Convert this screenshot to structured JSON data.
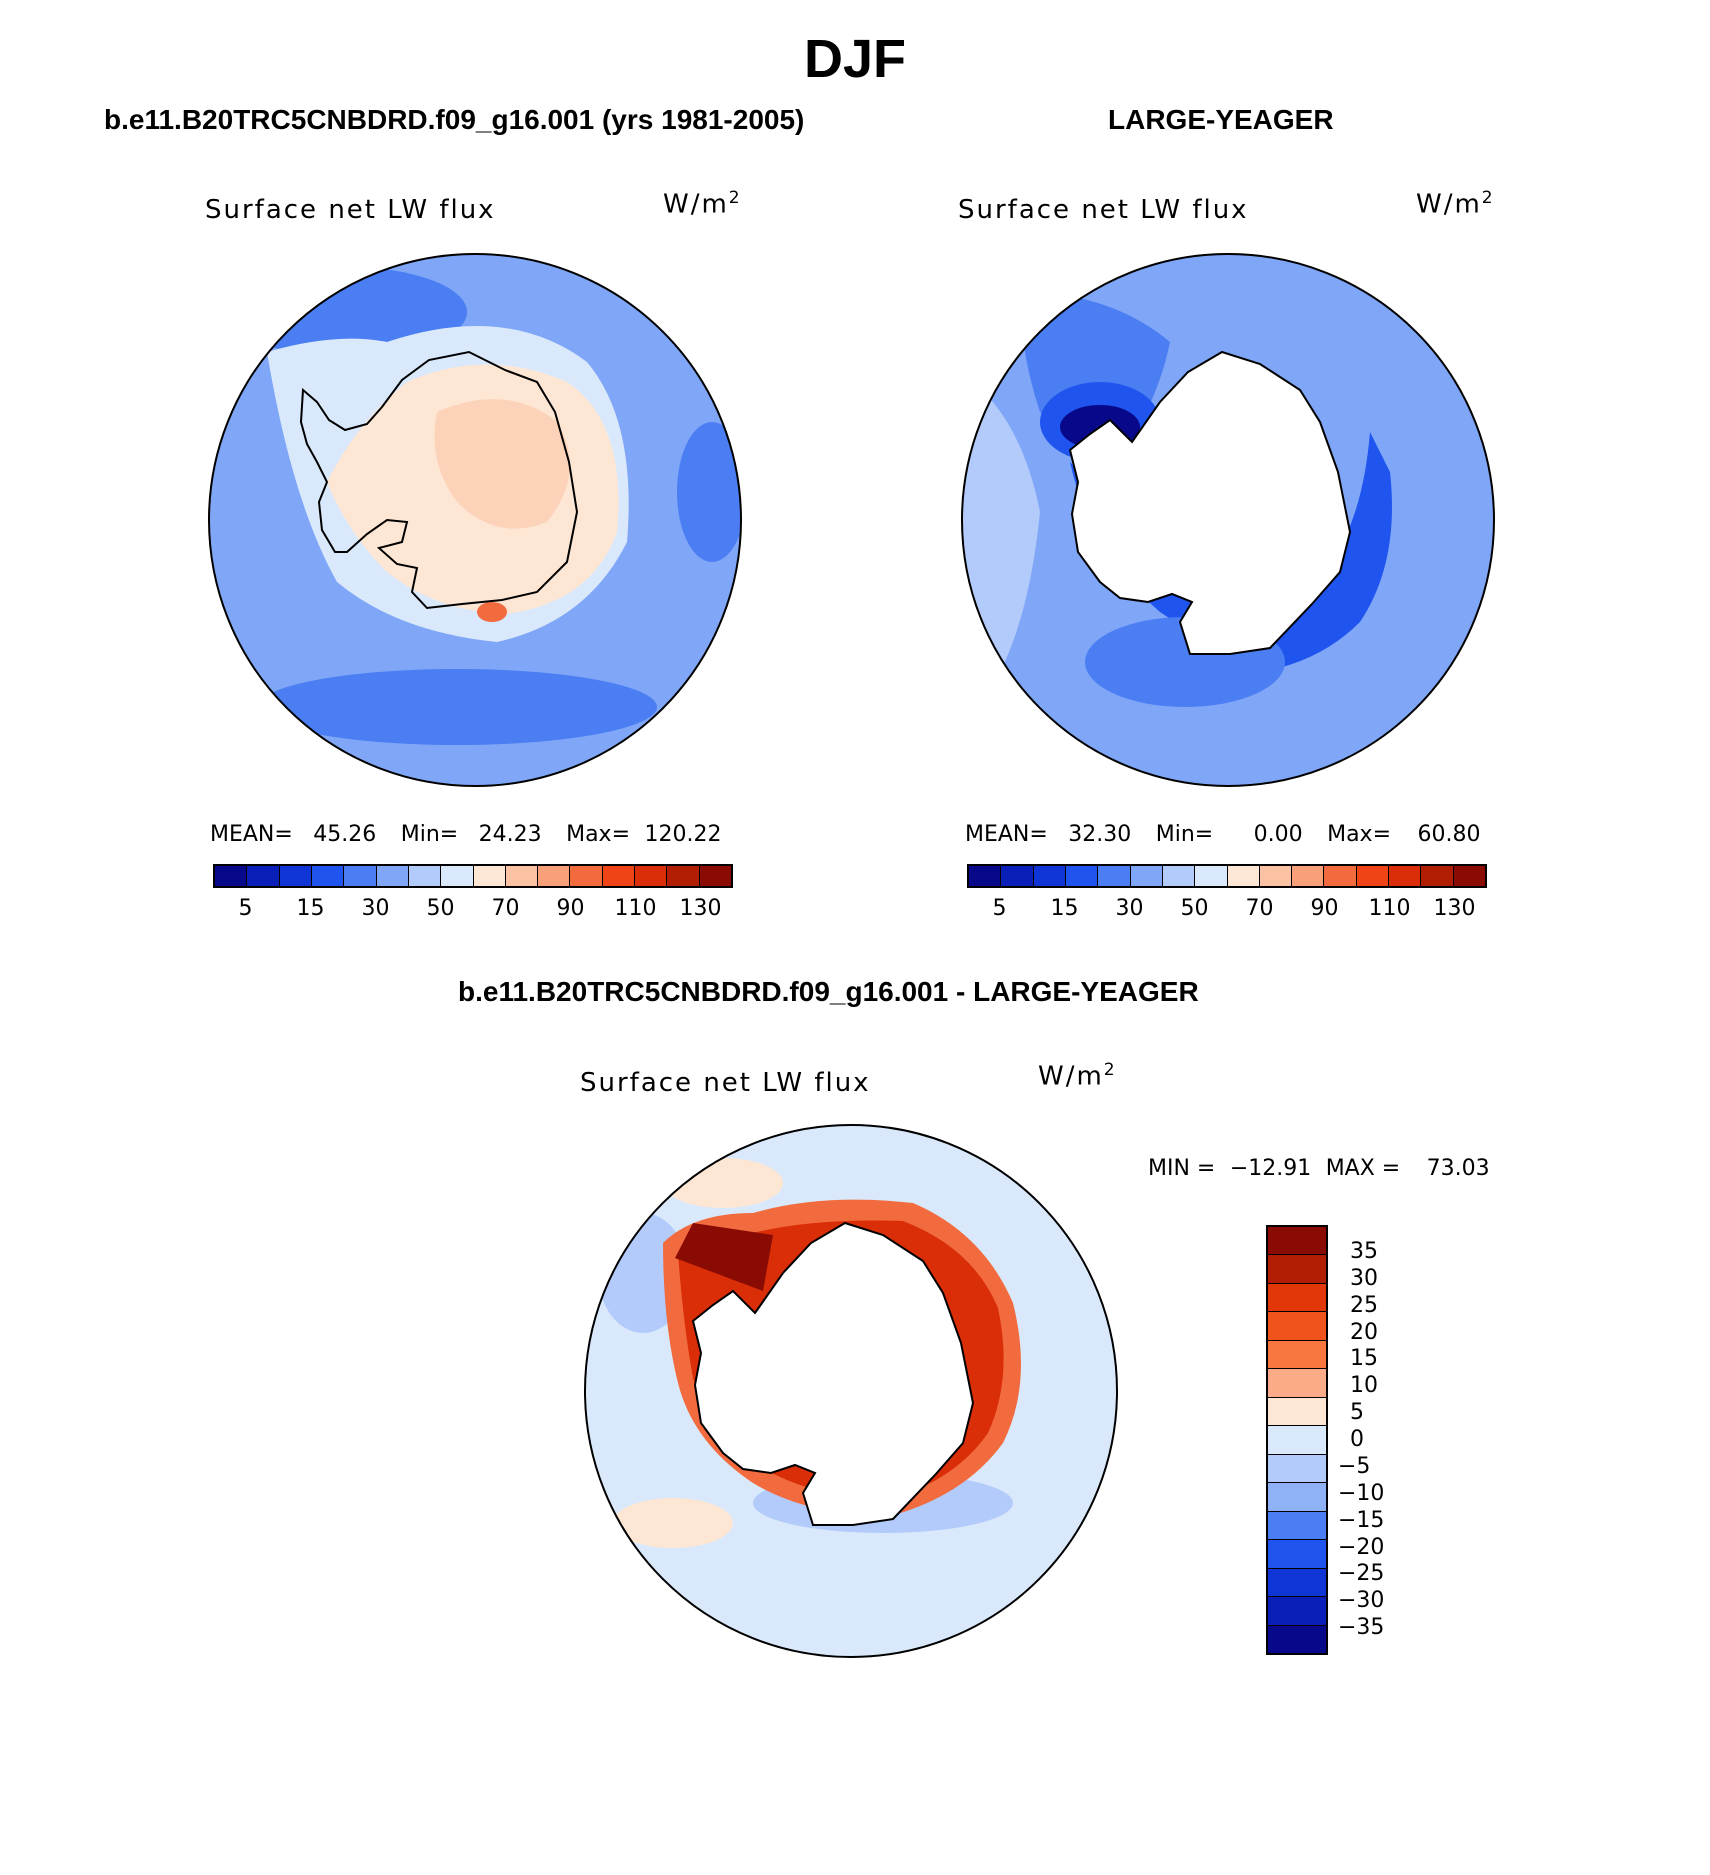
{
  "title": "DJF",
  "panels": [
    {
      "heading": "b.e11.B20TRC5CNBDRD.f09_g16.001 (yrs 1981-2005)",
      "label": "Surface net LW flux",
      "units": "W/m",
      "units_sup": "2",
      "stats": {
        "mean_label": "MEAN=",
        "mean": "45.26",
        "min_label": "Min=",
        "min": "24.23",
        "max_label": "Max=",
        "max": "120.22"
      }
    },
    {
      "heading": "LARGE-YEAGER",
      "label": "Surface net LW flux",
      "units": "W/m",
      "units_sup": "2",
      "stats": {
        "mean_label": "MEAN=",
        "mean": "32.30",
        "min_label": "Min=",
        "min": "0.00",
        "max_label": "Max=",
        "max": "60.80"
      }
    },
    {
      "heading": "b.e11.B20TRC5CNBDRD.f09_g16.001 - LARGE-YEAGER",
      "label": "Surface net LW flux",
      "units": "W/m",
      "units_sup": "2",
      "stats": {
        "min_label": "MIN =",
        "min": "−12.91",
        "max_label": "MAX =",
        "max": "73.03"
      }
    }
  ],
  "abs_colorbar": {
    "colors": [
      "#08088a",
      "#0a1fb8",
      "#1035d6",
      "#1f55ee",
      "#4a7ef2",
      "#7fa6f7",
      "#b3cbfa",
      "#d9e9fb",
      "#fde6d4",
      "#fbc3a3",
      "#f9a07b",
      "#f26b3e",
      "#ef4416",
      "#d92e08",
      "#b21e04",
      "#8a0b03"
    ],
    "ticks": [
      "5",
      "15",
      "30",
      "50",
      "70",
      "90",
      "110",
      "130"
    ]
  },
  "diff_colorbar": {
    "colors": [
      "#8a0b03",
      "#b21e04",
      "#e23708",
      "#f0541c",
      "#f8773e",
      "#fbab87",
      "#fde6d4",
      "#d9e9fb",
      "#b3cbfa",
      "#8fb1f6",
      "#4a7ef2",
      "#1f55ee",
      "#1035d6",
      "#0a1fb8",
      "#08088a"
    ],
    "ticks": [
      "35",
      "30",
      "25",
      "20",
      "15",
      "10",
      "5",
      "0",
      "−5",
      "−10",
      "−15",
      "−20",
      "−25",
      "−30",
      "−35"
    ]
  }
}
